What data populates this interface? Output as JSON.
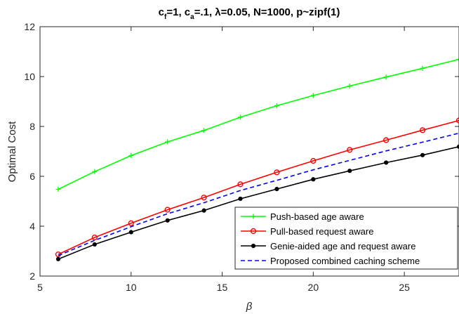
{
  "chart_data": {
    "type": "line",
    "title": {
      "parts": [
        {
          "text": "c",
          "sub": false
        },
        {
          "text": "f",
          "sub": true
        },
        {
          "text": "=1, c",
          "sub": false
        },
        {
          "text": "a",
          "sub": true
        },
        {
          "text": "=.1, λ=0.05, N=1000, p~zipf(1)",
          "sub": false
        }
      ]
    },
    "xlabel": "β",
    "ylabel": "Optimal Cost",
    "xlim": [
      5,
      28
    ],
    "ylim": [
      2,
      12
    ],
    "xticks": [
      5,
      10,
      15,
      20,
      25
    ],
    "yticks": [
      2,
      4,
      6,
      8,
      10,
      12
    ],
    "grid": false,
    "legend_position": "bottom-right",
    "x": [
      6,
      8,
      10,
      12,
      14,
      16,
      18,
      20,
      22,
      24,
      26,
      28
    ],
    "series": [
      {
        "name": "Push-based age aware",
        "color": "#00ff00",
        "marker": "plus",
        "dash": "solid",
        "values": [
          5.48,
          6.19,
          6.83,
          7.38,
          7.84,
          8.37,
          8.83,
          9.24,
          9.62,
          9.98,
          10.33,
          10.69
        ]
      },
      {
        "name": "Pull-based request aware",
        "color": "#ff0000",
        "marker": "circle",
        "dash": "solid",
        "values": [
          2.87,
          3.55,
          4.12,
          4.66,
          5.15,
          5.68,
          6.16,
          6.62,
          7.06,
          7.45,
          7.85,
          8.24
        ]
      },
      {
        "name": "Genie-aided age and request aware",
        "color": "#000000",
        "marker": "dot",
        "dash": "solid",
        "values": [
          2.68,
          3.27,
          3.76,
          4.23,
          4.63,
          5.1,
          5.49,
          5.88,
          6.22,
          6.55,
          6.85,
          7.19
        ]
      },
      {
        "name": "Proposed combined caching scheme",
        "color": "#0000ff",
        "marker": "none",
        "dash": "dashed",
        "values": [
          2.82,
          3.43,
          3.98,
          4.5,
          4.94,
          5.43,
          5.84,
          6.26,
          6.64,
          7.02,
          7.37,
          7.73
        ]
      }
    ]
  }
}
